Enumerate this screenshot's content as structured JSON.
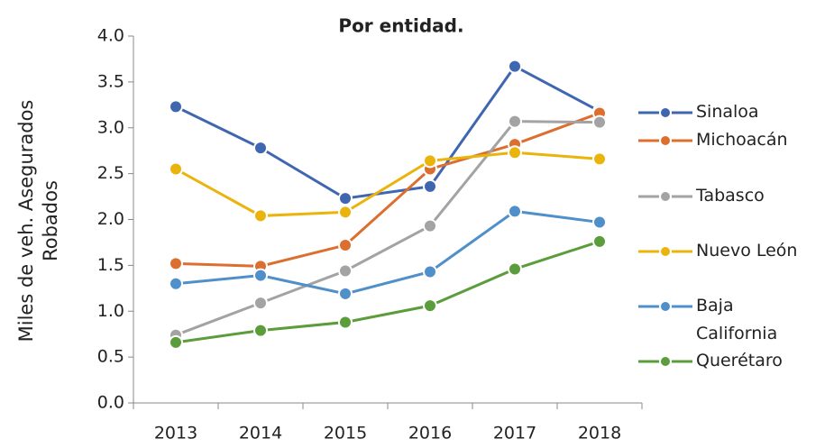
{
  "chart_data": {
    "type": "line",
    "title": "Por entidad.",
    "y_label": "Miles de veh. Asegurados Robados",
    "categories": [
      "2013",
      "2014",
      "2015",
      "2016",
      "2017",
      "2018"
    ],
    "series": [
      {
        "name": "Sinaloa",
        "color": "#3f66b0",
        "values": [
          3.23,
          2.78,
          2.23,
          2.36,
          3.67,
          3.18
        ]
      },
      {
        "name": "Michoacán",
        "color": "#dc6e2f",
        "values": [
          1.52,
          1.49,
          1.72,
          2.55,
          2.82,
          3.16
        ]
      },
      {
        "name": "Tabasco",
        "color": "#a3a3a3",
        "values": [
          0.74,
          1.09,
          1.44,
          1.93,
          3.07,
          3.06
        ]
      },
      {
        "name": "Nuevo León",
        "color": "#ebb40c",
        "values": [
          2.55,
          2.04,
          2.08,
          2.64,
          2.73,
          2.66
        ]
      },
      {
        "name": "Baja California",
        "color": "#4f8fca",
        "values": [
          1.3,
          1.39,
          1.19,
          1.43,
          2.09,
          1.97
        ]
      },
      {
        "name": "Querétaro",
        "color": "#5b9c3b",
        "values": [
          0.66,
          0.79,
          0.88,
          1.06,
          1.46,
          1.76
        ]
      }
    ],
    "ylim": [
      0,
      4
    ],
    "yticks": [
      {
        "value": 0,
        "label": "0.0"
      },
      0.5,
      {
        "value": 1,
        "label": "1.0"
      },
      1.5,
      {
        "value": 2,
        "label": "2.0"
      },
      2.5,
      {
        "value": 3,
        "label": "3.0"
      },
      3.5,
      {
        "value": 4,
        "label": "4.0"
      }
    ],
    "legend": "right"
  }
}
